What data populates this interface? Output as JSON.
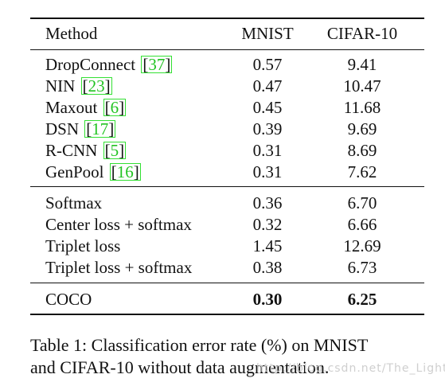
{
  "table": {
    "headers": {
      "method": "Method",
      "mnist": "MNIST",
      "cifar": "CIFAR-10"
    },
    "group1": [
      {
        "method": "DropConnect",
        "cite": "37",
        "mnist": "0.57",
        "cifar": "9.41"
      },
      {
        "method": "NIN",
        "cite": "23",
        "mnist": "0.47",
        "cifar": "10.47"
      },
      {
        "method": "Maxout",
        "cite": "6",
        "mnist": "0.45",
        "cifar": "11.68"
      },
      {
        "method": "DSN",
        "cite": "17",
        "mnist": "0.39",
        "cifar": "9.69"
      },
      {
        "method": "R-CNN",
        "cite": "5",
        "mnist": "0.31",
        "cifar": "8.69"
      },
      {
        "method": "GenPool",
        "cite": "16",
        "mnist": "0.31",
        "cifar": "7.62"
      }
    ],
    "group2": [
      {
        "method": "Softmax",
        "mnist": "0.36",
        "cifar": "6.70"
      },
      {
        "method": "Center loss + softmax",
        "mnist": "0.32",
        "cifar": "6.66"
      },
      {
        "method": "Triplet loss",
        "mnist": "1.45",
        "cifar": "12.69"
      },
      {
        "method": "Triplet loss + softmax",
        "mnist": "0.38",
        "cifar": "6.73"
      }
    ],
    "group3": [
      {
        "method": "COCO",
        "mnist": "0.30",
        "cifar": "6.25"
      }
    ]
  },
  "caption": {
    "line1": "Table 1: Classification error rate (%) on MNIST",
    "line2": "and CIFAR-10 without data augmentation."
  },
  "watermark": "http://blog.csdn.net/The_Light_"
}
